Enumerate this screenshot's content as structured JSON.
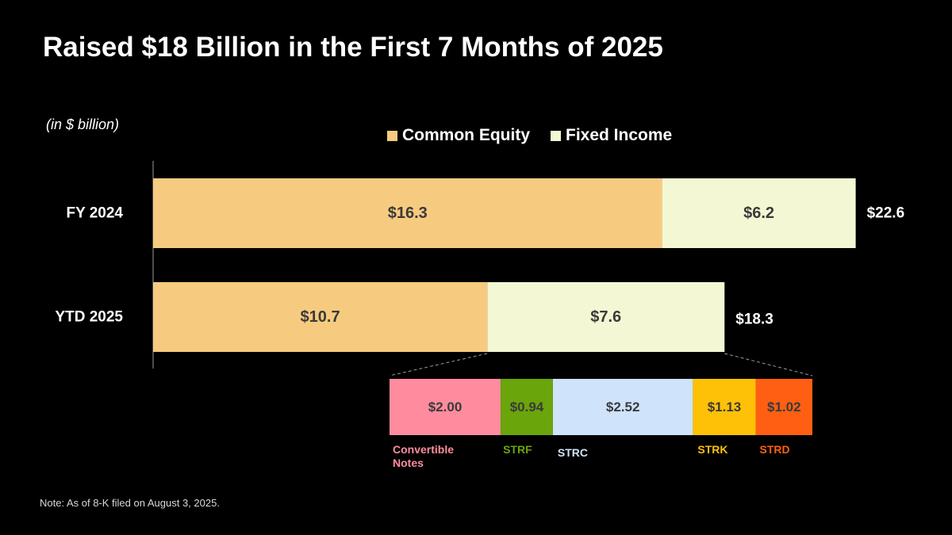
{
  "title": "Raised $18 Billion in the First 7 Months of 2025",
  "unit_note": "(in $ billion)",
  "footnote": "Note: As of 8-K filed on August 3, 2025.",
  "colors": {
    "common_equity": "#F7CB7F",
    "fixed_income": "#F4F7D3",
    "convertible_notes": "#FF8C9E",
    "strf": "#6AA50B",
    "strc": "#CFE3FA",
    "strk": "#FFC107",
    "strd": "#FF5F13"
  },
  "legend": [
    {
      "label": "Common Equity",
      "color": "#F7CB7F"
    },
    {
      "label": "Fixed Income",
      "color": "#F4F7D3"
    }
  ],
  "chart_data": [
    {
      "type": "bar",
      "orientation": "horizontal",
      "stacked": true,
      "categories": [
        "FY 2024",
        "YTD 2025"
      ],
      "series": [
        {
          "name": "Common Equity",
          "values": [
            16.3,
            10.7
          ],
          "labels": [
            "$16.3",
            "$10.7"
          ],
          "color": "#F7CB7F"
        },
        {
          "name": "Fixed Income",
          "values": [
            6.2,
            7.6
          ],
          "labels": [
            "$6.2",
            "$7.6"
          ],
          "color": "#F4F7D3"
        }
      ],
      "totals": [
        22.6,
        18.3
      ],
      "total_labels": [
        "$22.6",
        "$18.3"
      ],
      "xlim": [
        0,
        22.6
      ],
      "legend": "top-center",
      "grid": false
    },
    {
      "type": "bar",
      "orientation": "horizontal",
      "stacked": true,
      "breakdown_of": "Fixed Income YTD 2025",
      "segments": [
        {
          "name": "Convertible Notes",
          "value": 2.0,
          "label": "$2.00",
          "color": "#FF8C9E"
        },
        {
          "name": "STRF",
          "value": 0.94,
          "label": "$0.94",
          "color": "#6AA50B"
        },
        {
          "name": "STRC",
          "value": 2.52,
          "label": "$2.52",
          "color": "#CFE3FA"
        },
        {
          "name": "STRK",
          "value": 1.13,
          "label": "$1.13",
          "color": "#FFC107"
        },
        {
          "name": "STRD",
          "value": 1.02,
          "label": "$1.02",
          "color": "#FF5F13"
        }
      ],
      "grid": false
    }
  ]
}
